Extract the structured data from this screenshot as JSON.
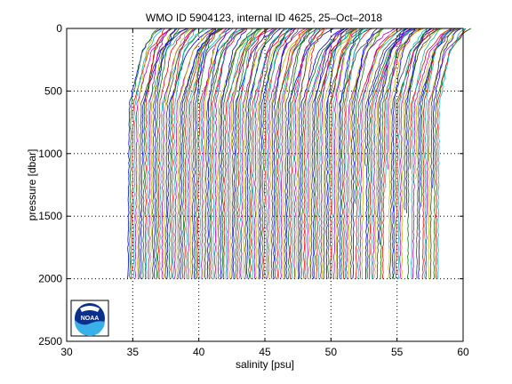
{
  "chart_data": {
    "type": "line",
    "title": "WMO ID 5904123, internal ID 4625, 25–Oct–2018",
    "xlabel": "salinity [psu]",
    "ylabel": "pressure [dbar]",
    "xlim": [
      30,
      60
    ],
    "ylim": [
      2500,
      0
    ],
    "y_reversed": true,
    "xticks": [
      "30",
      "35",
      "40",
      "45",
      "50",
      "55",
      "60"
    ],
    "yticks": [
      "0",
      "500",
      "1000",
      "1500",
      "2000",
      "2500"
    ],
    "grid": true,
    "profile_count": 165,
    "profile_offset_step": 0.143,
    "base_salinity_first_profile": 34.7,
    "max_pressure": 2000,
    "series_colors": [
      "#0000ff",
      "#008000",
      "#ff0000",
      "#00bfbf",
      "#bf00bf",
      "#bfbf00",
      "#404040"
    ],
    "logo": {
      "name": "noaa-logo",
      "text": "NOAA"
    }
  }
}
